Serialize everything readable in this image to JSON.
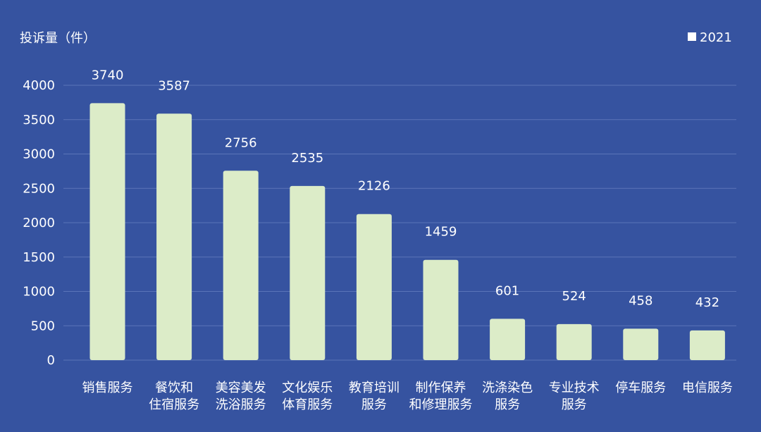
{
  "chart_data": {
    "type": "bar",
    "title": "",
    "ylabel": "投诉量（件）",
    "xlabel": "",
    "legend": {
      "label": "2021",
      "position": "top-right"
    },
    "categories": [
      [
        "销售服务"
      ],
      [
        "餐饮和",
        "住宿服务"
      ],
      [
        "美容美发",
        "洗浴服务"
      ],
      [
        "文化娱乐",
        "体育服务"
      ],
      [
        "教育培训",
        "服务"
      ],
      [
        "制作保养",
        "和修理服务"
      ],
      [
        "洗涤染色",
        "服务"
      ],
      [
        "专业技术",
        "服务"
      ],
      [
        "停车服务"
      ],
      [
        "电信服务"
      ]
    ],
    "values": [
      3740,
      3587,
      2756,
      2535,
      2126,
      1459,
      601,
      524,
      458,
      432
    ],
    "ylim": [
      0,
      4000
    ],
    "yticks": [
      0,
      500,
      1000,
      1500,
      2000,
      2500,
      3000,
      3500,
      4000
    ],
    "grid": true,
    "colors": {
      "background": "#3653a0",
      "bar": "#dcecc8",
      "text": "#ffffff",
      "grid": "#5b74b8",
      "legend_marker": "#ffffff"
    }
  }
}
